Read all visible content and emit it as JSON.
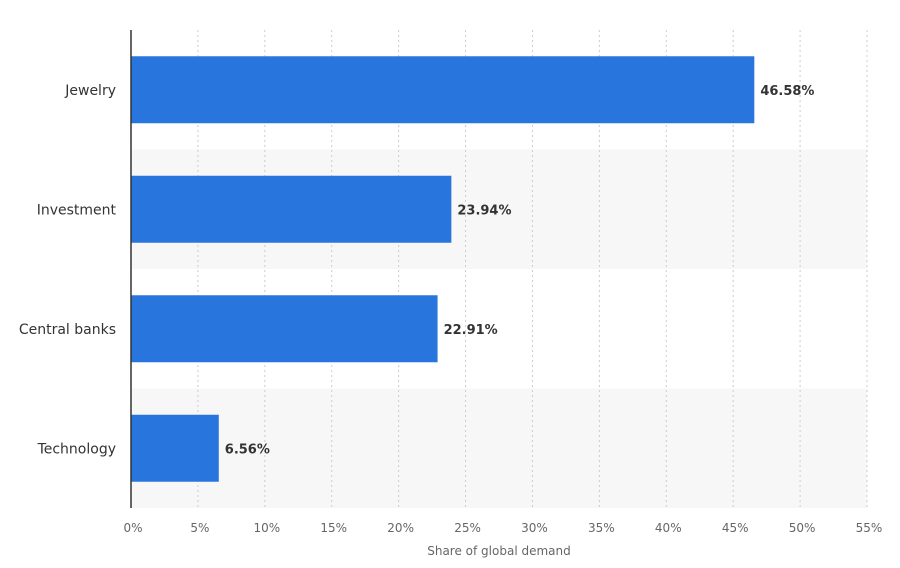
{
  "chart_data": {
    "type": "bar",
    "orientation": "horizontal",
    "categories": [
      "Jewelry",
      "Investment",
      "Central banks",
      "Technology"
    ],
    "values": [
      46.58,
      23.94,
      22.91,
      6.56
    ],
    "value_labels": [
      "46.58%",
      "23.94%",
      "22.91%",
      "6.56%"
    ],
    "xlabel": "Share of global demand",
    "ylabel": "",
    "xlim": [
      0,
      55
    ],
    "ticks": [
      0,
      5,
      10,
      15,
      20,
      25,
      30,
      35,
      40,
      45,
      50,
      55
    ],
    "tick_labels": [
      "0%",
      "5%",
      "10%",
      "15%",
      "20%",
      "25%",
      "30%",
      "35%",
      "40%",
      "45%",
      "50%",
      "55%"
    ],
    "grid": true,
    "legend": "none",
    "colors": {
      "bar": "#2876dd",
      "band": "#f7f7f7",
      "grid": "#cccccc",
      "axis": "#333333"
    }
  }
}
